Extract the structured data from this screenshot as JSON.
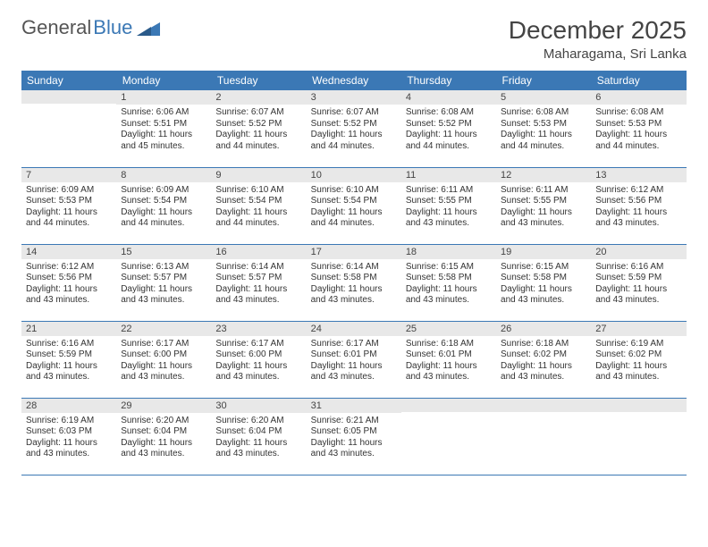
{
  "logo": {
    "part1": "General",
    "part2": "Blue"
  },
  "title": "December 2025",
  "location": "Maharagama, Sri Lanka",
  "weekdays": [
    "Sunday",
    "Monday",
    "Tuesday",
    "Wednesday",
    "Thursday",
    "Friday",
    "Saturday"
  ],
  "colors": {
    "header_bg": "#3b78b5",
    "header_text": "#ffffff",
    "daynum_bg": "#e8e8e8",
    "border": "#3b78b5",
    "text": "#333333"
  },
  "weeks": [
    [
      {
        "day": "",
        "sunrise": "",
        "sunset": "",
        "daylight": ""
      },
      {
        "day": "1",
        "sunrise": "Sunrise: 6:06 AM",
        "sunset": "Sunset: 5:51 PM",
        "daylight": "Daylight: 11 hours and 45 minutes."
      },
      {
        "day": "2",
        "sunrise": "Sunrise: 6:07 AM",
        "sunset": "Sunset: 5:52 PM",
        "daylight": "Daylight: 11 hours and 44 minutes."
      },
      {
        "day": "3",
        "sunrise": "Sunrise: 6:07 AM",
        "sunset": "Sunset: 5:52 PM",
        "daylight": "Daylight: 11 hours and 44 minutes."
      },
      {
        "day": "4",
        "sunrise": "Sunrise: 6:08 AM",
        "sunset": "Sunset: 5:52 PM",
        "daylight": "Daylight: 11 hours and 44 minutes."
      },
      {
        "day": "5",
        "sunrise": "Sunrise: 6:08 AM",
        "sunset": "Sunset: 5:53 PM",
        "daylight": "Daylight: 11 hours and 44 minutes."
      },
      {
        "day": "6",
        "sunrise": "Sunrise: 6:08 AM",
        "sunset": "Sunset: 5:53 PM",
        "daylight": "Daylight: 11 hours and 44 minutes."
      }
    ],
    [
      {
        "day": "7",
        "sunrise": "Sunrise: 6:09 AM",
        "sunset": "Sunset: 5:53 PM",
        "daylight": "Daylight: 11 hours and 44 minutes."
      },
      {
        "day": "8",
        "sunrise": "Sunrise: 6:09 AM",
        "sunset": "Sunset: 5:54 PM",
        "daylight": "Daylight: 11 hours and 44 minutes."
      },
      {
        "day": "9",
        "sunrise": "Sunrise: 6:10 AM",
        "sunset": "Sunset: 5:54 PM",
        "daylight": "Daylight: 11 hours and 44 minutes."
      },
      {
        "day": "10",
        "sunrise": "Sunrise: 6:10 AM",
        "sunset": "Sunset: 5:54 PM",
        "daylight": "Daylight: 11 hours and 44 minutes."
      },
      {
        "day": "11",
        "sunrise": "Sunrise: 6:11 AM",
        "sunset": "Sunset: 5:55 PM",
        "daylight": "Daylight: 11 hours and 43 minutes."
      },
      {
        "day": "12",
        "sunrise": "Sunrise: 6:11 AM",
        "sunset": "Sunset: 5:55 PM",
        "daylight": "Daylight: 11 hours and 43 minutes."
      },
      {
        "day": "13",
        "sunrise": "Sunrise: 6:12 AM",
        "sunset": "Sunset: 5:56 PM",
        "daylight": "Daylight: 11 hours and 43 minutes."
      }
    ],
    [
      {
        "day": "14",
        "sunrise": "Sunrise: 6:12 AM",
        "sunset": "Sunset: 5:56 PM",
        "daylight": "Daylight: 11 hours and 43 minutes."
      },
      {
        "day": "15",
        "sunrise": "Sunrise: 6:13 AM",
        "sunset": "Sunset: 5:57 PM",
        "daylight": "Daylight: 11 hours and 43 minutes."
      },
      {
        "day": "16",
        "sunrise": "Sunrise: 6:14 AM",
        "sunset": "Sunset: 5:57 PM",
        "daylight": "Daylight: 11 hours and 43 minutes."
      },
      {
        "day": "17",
        "sunrise": "Sunrise: 6:14 AM",
        "sunset": "Sunset: 5:58 PM",
        "daylight": "Daylight: 11 hours and 43 minutes."
      },
      {
        "day": "18",
        "sunrise": "Sunrise: 6:15 AM",
        "sunset": "Sunset: 5:58 PM",
        "daylight": "Daylight: 11 hours and 43 minutes."
      },
      {
        "day": "19",
        "sunrise": "Sunrise: 6:15 AM",
        "sunset": "Sunset: 5:58 PM",
        "daylight": "Daylight: 11 hours and 43 minutes."
      },
      {
        "day": "20",
        "sunrise": "Sunrise: 6:16 AM",
        "sunset": "Sunset: 5:59 PM",
        "daylight": "Daylight: 11 hours and 43 minutes."
      }
    ],
    [
      {
        "day": "21",
        "sunrise": "Sunrise: 6:16 AM",
        "sunset": "Sunset: 5:59 PM",
        "daylight": "Daylight: 11 hours and 43 minutes."
      },
      {
        "day": "22",
        "sunrise": "Sunrise: 6:17 AM",
        "sunset": "Sunset: 6:00 PM",
        "daylight": "Daylight: 11 hours and 43 minutes."
      },
      {
        "day": "23",
        "sunrise": "Sunrise: 6:17 AM",
        "sunset": "Sunset: 6:00 PM",
        "daylight": "Daylight: 11 hours and 43 minutes."
      },
      {
        "day": "24",
        "sunrise": "Sunrise: 6:17 AM",
        "sunset": "Sunset: 6:01 PM",
        "daylight": "Daylight: 11 hours and 43 minutes."
      },
      {
        "day": "25",
        "sunrise": "Sunrise: 6:18 AM",
        "sunset": "Sunset: 6:01 PM",
        "daylight": "Daylight: 11 hours and 43 minutes."
      },
      {
        "day": "26",
        "sunrise": "Sunrise: 6:18 AM",
        "sunset": "Sunset: 6:02 PM",
        "daylight": "Daylight: 11 hours and 43 minutes."
      },
      {
        "day": "27",
        "sunrise": "Sunrise: 6:19 AM",
        "sunset": "Sunset: 6:02 PM",
        "daylight": "Daylight: 11 hours and 43 minutes."
      }
    ],
    [
      {
        "day": "28",
        "sunrise": "Sunrise: 6:19 AM",
        "sunset": "Sunset: 6:03 PM",
        "daylight": "Daylight: 11 hours and 43 minutes."
      },
      {
        "day": "29",
        "sunrise": "Sunrise: 6:20 AM",
        "sunset": "Sunset: 6:04 PM",
        "daylight": "Daylight: 11 hours and 43 minutes."
      },
      {
        "day": "30",
        "sunrise": "Sunrise: 6:20 AM",
        "sunset": "Sunset: 6:04 PM",
        "daylight": "Daylight: 11 hours and 43 minutes."
      },
      {
        "day": "31",
        "sunrise": "Sunrise: 6:21 AM",
        "sunset": "Sunset: 6:05 PM",
        "daylight": "Daylight: 11 hours and 43 minutes."
      },
      {
        "day": "",
        "sunrise": "",
        "sunset": "",
        "daylight": ""
      },
      {
        "day": "",
        "sunrise": "",
        "sunset": "",
        "daylight": ""
      },
      {
        "day": "",
        "sunrise": "",
        "sunset": "",
        "daylight": ""
      }
    ]
  ]
}
